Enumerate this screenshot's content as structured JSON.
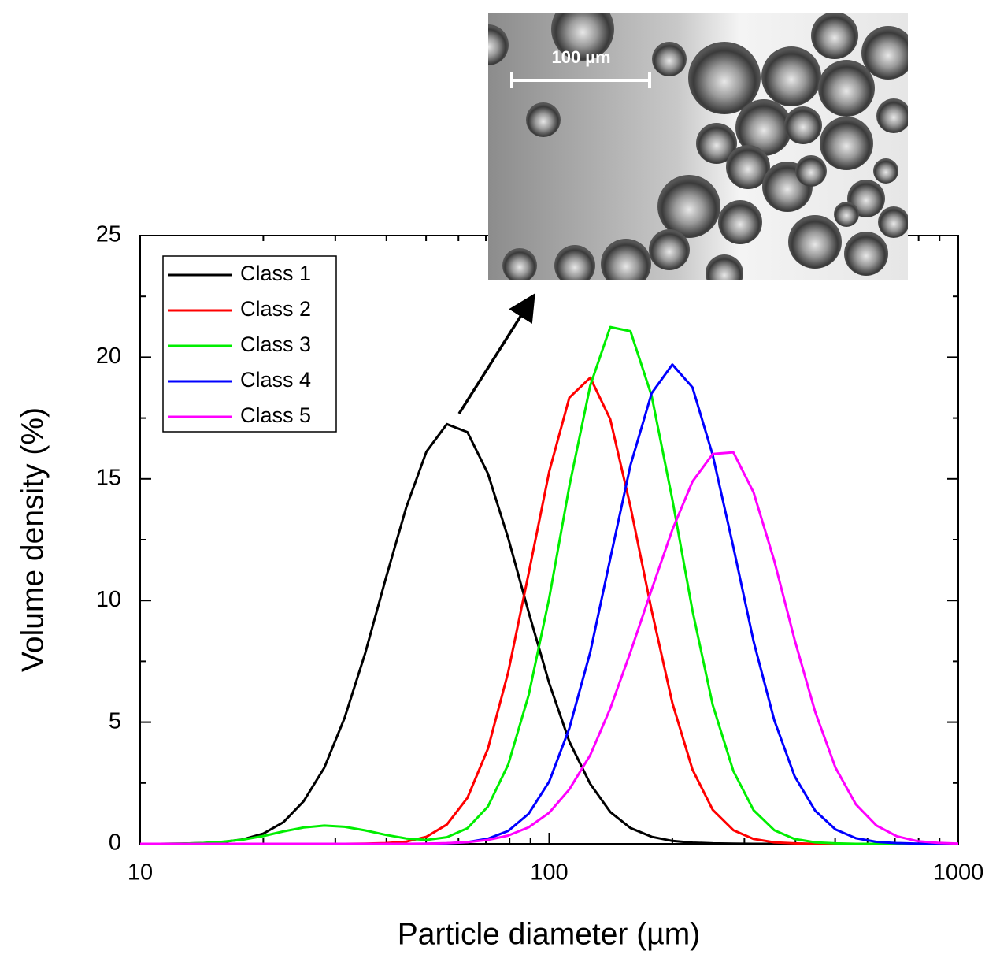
{
  "chart_data": {
    "type": "line",
    "xlabel": "Particle diameter (µm)",
    "ylabel": "Volume density (%)",
    "xscale": "log",
    "xlim": [
      10,
      1000
    ],
    "xticks": [
      10,
      100,
      1000
    ],
    "xminorticks": [
      20,
      30,
      40,
      50,
      60,
      70,
      80,
      90,
      200,
      300,
      400,
      500,
      600,
      700,
      800,
      900
    ],
    "ylim": [
      0,
      25
    ],
    "yticks": [
      0,
      5,
      10,
      15,
      20,
      25
    ],
    "yminorticks": [
      2.5,
      7.5,
      12.5,
      17.5,
      22.5
    ],
    "legend": "upper left",
    "inset_label": "100 µm",
    "x": [
      10,
      11.2,
      12.6,
      14.1,
      15.8,
      17.8,
      20,
      22.4,
      25.1,
      28.2,
      31.6,
      35.5,
      39.8,
      44.7,
      50.1,
      56.2,
      63.1,
      70.8,
      79.4,
      89.1,
      100,
      112,
      126,
      141,
      158,
      178,
      200,
      224,
      251,
      282,
      316,
      355,
      398,
      447,
      501,
      562,
      631,
      708,
      794,
      891,
      1000
    ],
    "series": [
      {
        "name": "Class 1",
        "color": "#000000",
        "values": [
          0,
          0,
          0.01,
          0.03,
          0.07,
          0.18,
          0.42,
          0.89,
          1.75,
          3.13,
          5.17,
          7.84,
          10.87,
          13.82,
          16.12,
          17.25,
          16.92,
          15.22,
          12.56,
          9.51,
          6.6,
          4.2,
          2.46,
          1.31,
          0.65,
          0.29,
          0.12,
          0.05,
          0.02,
          0.01,
          0,
          0,
          0,
          0,
          0,
          0,
          0,
          0,
          0,
          0,
          0
        ]
      },
      {
        "name": "Class 2",
        "color": "#ff0000",
        "values": [
          0,
          0,
          0,
          0,
          0,
          0,
          0,
          0,
          0,
          0,
          0,
          0.01,
          0.03,
          0.09,
          0.29,
          0.79,
          1.89,
          3.9,
          7.06,
          11.13,
          15.3,
          18.34,
          19.16,
          17.45,
          13.86,
          9.59,
          5.79,
          3.05,
          1.4,
          0.56,
          0.2,
          0.06,
          0.02,
          0,
          0,
          0,
          0,
          0,
          0,
          0,
          0
        ]
      },
      {
        "name": "Class 3",
        "color": "#00ee00",
        "values": [
          0,
          0,
          0.01,
          0.03,
          0.08,
          0.17,
          0.32,
          0.51,
          0.67,
          0.75,
          0.7,
          0.55,
          0.37,
          0.22,
          0.16,
          0.27,
          0.64,
          1.53,
          3.26,
          6.12,
          10.1,
          14.7,
          18.84,
          21.24,
          21.07,
          18.41,
          14.15,
          9.58,
          5.71,
          2.99,
          1.38,
          0.56,
          0.2,
          0.06,
          0.02,
          0,
          0,
          0,
          0,
          0,
          0
        ]
      },
      {
        "name": "Class 4",
        "color": "#0000ff",
        "values": [
          0,
          0,
          0,
          0,
          0,
          0,
          0,
          0,
          0,
          0,
          0,
          0,
          0,
          0,
          0,
          0.02,
          0.07,
          0.21,
          0.53,
          1.24,
          2.56,
          4.75,
          7.88,
          11.72,
          15.56,
          18.52,
          19.7,
          18.76,
          15.98,
          12.19,
          8.32,
          5.08,
          2.78,
          1.36,
          0.59,
          0.23,
          0.08,
          0.03,
          0.01,
          0,
          0
        ]
      },
      {
        "name": "Class 5",
        "color": "#ff00ff",
        "values": [
          0,
          0,
          0,
          0,
          0,
          0,
          0,
          0,
          0,
          0,
          0,
          0,
          0,
          0,
          0.01,
          0.03,
          0.07,
          0.16,
          0.34,
          0.68,
          1.28,
          2.24,
          3.65,
          5.56,
          7.88,
          10.45,
          12.91,
          14.89,
          16.02,
          16.09,
          14.44,
          11.63,
          8.39,
          5.42,
          3.13,
          1.62,
          0.75,
          0.31,
          0.11,
          0.04,
          0.01
        ]
      }
    ]
  }
}
